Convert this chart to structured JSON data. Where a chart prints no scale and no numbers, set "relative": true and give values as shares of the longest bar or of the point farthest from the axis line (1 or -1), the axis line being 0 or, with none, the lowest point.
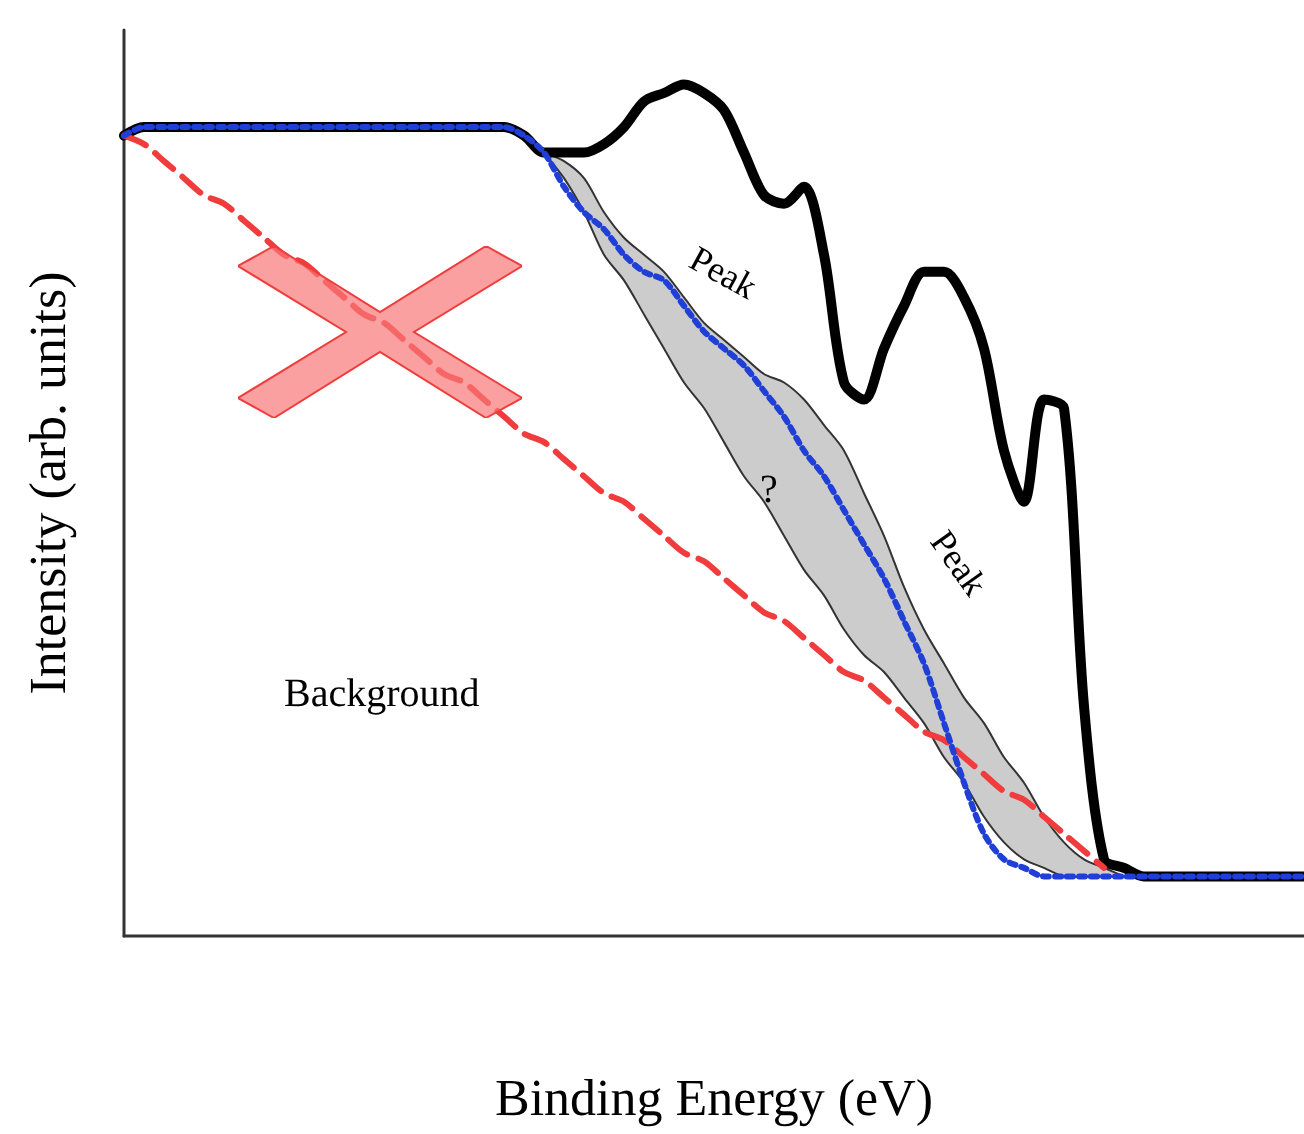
{
  "chart_data": {
    "type": "line",
    "relative": true,
    "xlabel": "Binding Energy (eV)",
    "ylabel": "Intensity (arb. units)",
    "annotations": [
      "Peak",
      "?",
      "Peak",
      "Background"
    ],
    "categories": [
      null,
      null,
      null,
      null,
      null,
      null,
      null,
      null,
      null,
      null,
      null,
      null,
      null,
      null,
      null,
      null,
      null,
      null,
      null,
      null,
      null,
      null,
      null,
      null,
      null,
      null,
      null,
      null,
      null,
      null,
      null,
      null,
      null,
      null,
      null,
      null,
      null,
      null,
      null,
      null,
      null,
      null,
      null,
      null,
      null,
      null,
      null,
      null,
      null,
      null,
      null,
      null,
      null,
      null,
      null,
      null,
      null,
      null,
      null,
      null
    ],
    "series": [
      {
        "color": "#f03c3c",
        "line_style": "dashed",
        "values": [
          0.94,
          0.93,
          0.91,
          0.89,
          0.87,
          0.86,
          0.84,
          0.82,
          0.8,
          0.79,
          0.77,
          0.75,
          0.73,
          0.72,
          0.7,
          0.68,
          0.66,
          0.65,
          0.63,
          0.61,
          0.59,
          0.58,
          0.56,
          0.54,
          0.52,
          0.51,
          0.49,
          0.47,
          0.45,
          0.44,
          0.42,
          0.4,
          0.38,
          0.37,
          0.35,
          0.33,
          0.31,
          0.3,
          0.28,
          0.26,
          0.24,
          0.23,
          0.21,
          0.19,
          0.17,
          0.16,
          0.14,
          0.12,
          0.1,
          0.08,
          null,
          null,
          null,
          null,
          null,
          null,
          null,
          null,
          null,
          null
        ]
      },
      {
        "color": "#000000",
        "line_style": "solid",
        "values": [
          0.94,
          0.95,
          0.95,
          0.95,
          0.95,
          0.95,
          0.95,
          0.95,
          0.95,
          0.95,
          0.95,
          0.95,
          0.95,
          0.95,
          0.95,
          0.95,
          0.95,
          0.95,
          0.95,
          0.95,
          0.94,
          0.92,
          0.92,
          0.92,
          0.93,
          0.95,
          0.98,
          0.99,
          1,
          0.99,
          0.97,
          0.92,
          0.87,
          0.86,
          0.88,
          0.8,
          0.65,
          0.63,
          0.69,
          0.74,
          0.78,
          0.78,
          0.75,
          0.69,
          0.57,
          0.51,
          0.63,
          0.62,
          0.27,
          0.09,
          0.08,
          0.07,
          0.07,
          0.07,
          0.07,
          0.07,
          0.07,
          0.07,
          0.07,
          0.07
        ]
      },
      {
        "color": "#1f3fd6",
        "line_style": "dotted",
        "values": [
          0.94,
          0.95,
          0.95,
          0.95,
          0.95,
          0.95,
          0.95,
          0.95,
          0.95,
          0.95,
          0.95,
          0.95,
          0.95,
          0.95,
          0.95,
          0.95,
          0.95,
          0.95,
          0.95,
          0.95,
          0.94,
          0.92,
          0.88,
          0.85,
          0.83,
          0.8,
          0.78,
          0.77,
          0.74,
          0.71,
          0.69,
          0.67,
          0.64,
          0.61,
          0.57,
          0.54,
          0.5,
          0.46,
          0.42,
          0.37,
          0.32,
          0.25,
          0.18,
          0.12,
          0.09,
          0.08,
          0.07,
          0.07,
          0.07,
          0.07,
          0.07,
          0.07,
          0.07,
          0.07,
          0.07,
          0.07,
          0.07,
          0.07,
          0.07,
          0.07
        ],
        "lower": [
          null,
          null,
          null,
          null,
          null,
          null,
          null,
          null,
          null,
          null,
          null,
          null,
          null,
          null,
          null,
          null,
          null,
          null,
          null,
          null,
          null,
          0.92,
          0.89,
          0.85,
          0.8,
          0.77,
          0.73,
          0.69,
          0.65,
          0.62,
          0.58,
          0.54,
          0.51,
          0.47,
          0.43,
          0.4,
          0.36,
          0.33,
          0.31,
          0.28,
          0.25,
          0.21,
          0.18,
          0.14,
          0.11,
          0.09,
          0.08,
          0.07,
          0.07,
          0.07,
          0.07,
          null,
          null,
          null,
          null,
          null,
          null,
          null,
          null,
          null
        ],
        "upper": [
          null,
          null,
          null,
          null,
          null,
          null,
          null,
          null,
          null,
          null,
          null,
          null,
          null,
          null,
          null,
          null,
          null,
          null,
          null,
          null,
          null,
          0.92,
          0.91,
          0.89,
          0.85,
          0.82,
          0.8,
          0.78,
          0.75,
          0.72,
          0.7,
          0.68,
          0.66,
          0.65,
          0.63,
          0.6,
          0.57,
          0.52,
          0.47,
          0.41,
          0.36,
          0.32,
          0.28,
          0.25,
          0.21,
          0.18,
          0.14,
          0.11,
          0.09,
          0.08,
          0.07,
          null,
          null,
          null,
          null,
          null,
          null,
          null,
          null,
          null
        ]
      }
    ]
  }
}
